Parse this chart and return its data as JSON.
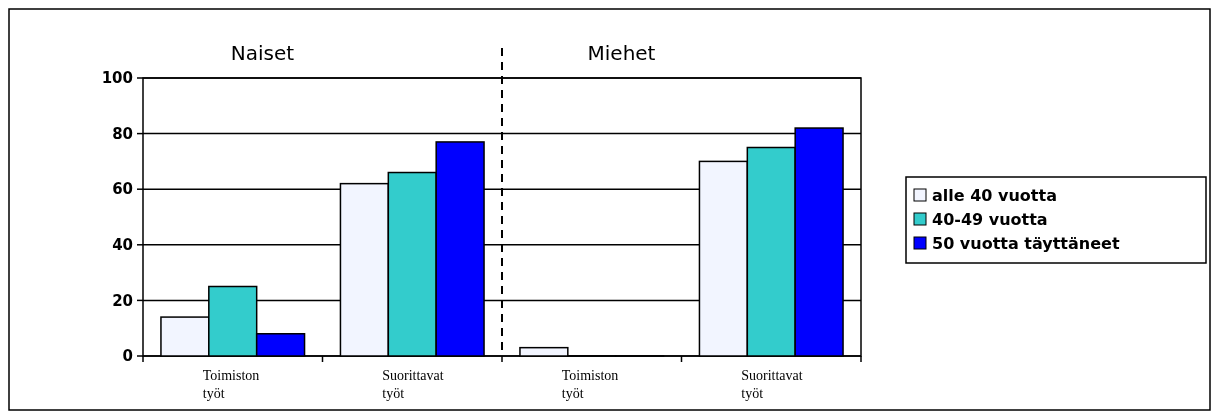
{
  "chart_data": {
    "type": "bar",
    "categories": [
      "Toimiston työt",
      "Suorittavat työt",
      "Toimiston työt",
      "Suorittavat työt"
    ],
    "series": [
      {
        "name": "alle 40 vuotta",
        "color": "#f2f5ff",
        "values": [
          14,
          62,
          3,
          70
        ]
      },
      {
        "name": "40-49 vuotta",
        "color": "#33cccc",
        "values": [
          25,
          66,
          0,
          75
        ]
      },
      {
        "name": "50 vuotta täyttäneet",
        "color": "#0000ff",
        "values": [
          8,
          77,
          0,
          82
        ]
      }
    ],
    "annotations": [
      "Naiset",
      "Miehet"
    ],
    "ylim": [
      0,
      100
    ],
    "yticks": [
      0,
      20,
      40,
      60,
      80,
      100
    ],
    "grid": "y",
    "legend": "right"
  }
}
